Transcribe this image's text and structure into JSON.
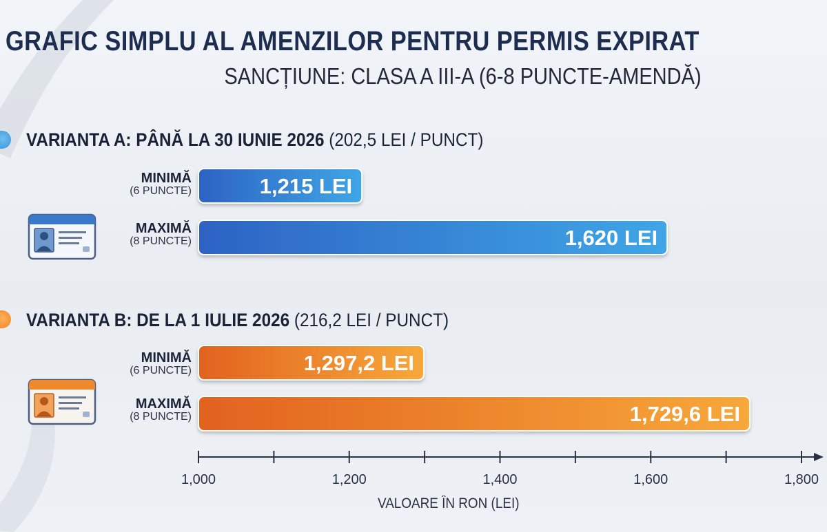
{
  "title": "GRAFIC SIMPLU AL AMENZILOR PENTRU PERMIS EXPIRAT",
  "subtitle": "SANCȚIUNE: CLASA A III-A (6-8 PUNCTE-AMENDĂ)",
  "colors": {
    "a_start": "#2d63c4",
    "a_end": "#3fa6e6",
    "b_start": "#e2621f",
    "b_end": "#f7a83a"
  },
  "icons": {
    "a": "driver-license-icon",
    "b": "driver-license-icon"
  },
  "chart_data": {
    "type": "bar",
    "orientation": "horizontal",
    "xlabel": "VALOARE ÎN RON (LEI)",
    "xlim": [
      1000,
      1800
    ],
    "xticks": [
      1000,
      1100,
      1200,
      1300,
      1400,
      1500,
      1600,
      1700,
      1800
    ],
    "xtick_labels": [
      "1,000",
      "1,200",
      "1,400",
      "1,600",
      "1,800"
    ],
    "xtick_label_values": [
      1000,
      1200,
      1400,
      1600,
      1800
    ],
    "groups": [
      {
        "title": "VARIANTA A: PÂNĂ LA 30 IUNIE 2026",
        "rate": "(202,5 LEI / PUNCT)",
        "bars": [
          {
            "label": "MINIMĂ",
            "sublabel": "(6 PUNCTE)",
            "value": 1215,
            "value_label": "1,215 LEI"
          },
          {
            "label": "MAXIMĂ",
            "sublabel": "(8 PUNCTE)",
            "value": 1620,
            "value_label": "1,620 LEI"
          }
        ]
      },
      {
        "title": "VARIANTA B: DE LA 1 IULIE 2026",
        "rate": "(216,2 LEI / PUNCT)",
        "bars": [
          {
            "label": "MINIMĂ",
            "sublabel": "(6 PUNCTE)",
            "value": 1297.2,
            "value_label": "1,297,2 LEI"
          },
          {
            "label": "MAXIMĂ",
            "sublabel": "(8 PUNCTE)",
            "value": 1729.6,
            "value_label": "1,729,6 LEI"
          }
        ]
      }
    ]
  }
}
